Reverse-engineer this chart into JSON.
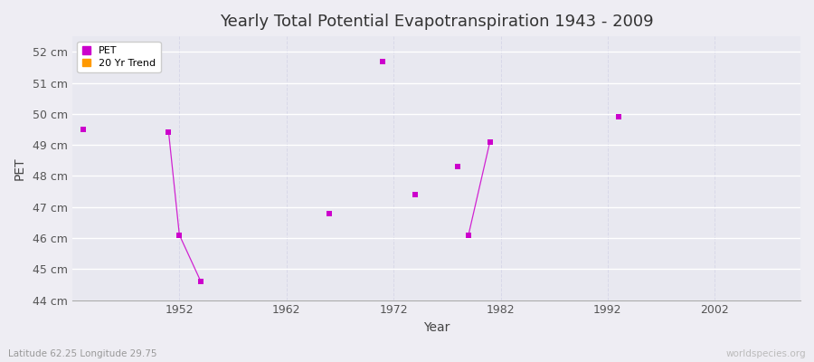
{
  "title": "Yearly Total Potential Evapotranspiration 1943 - 2009",
  "xlabel": "Year",
  "ylabel": "PET",
  "xlim": [
    1942,
    2010
  ],
  "ylim": [
    44,
    52.5
  ],
  "yticks": [
    44,
    45,
    46,
    47,
    48,
    49,
    50,
    51,
    52
  ],
  "ytick_labels": [
    "44 cm",
    "45 cm",
    "46 cm",
    "47 cm",
    "48 cm",
    "49 cm",
    "50 cm",
    "51 cm",
    "52 cm"
  ],
  "xticks": [
    1952,
    1962,
    1972,
    1982,
    1992,
    2002
  ],
  "background_color": "#eeedf3",
  "plot_bg_color": "#e8e8f0",
  "grid_color_h": "#ffffff",
  "grid_color_v": "#d8d8e8",
  "pet_color": "#cc00cc",
  "trend_color": "#ff9900",
  "scatter_points": [
    {
      "year": 1943,
      "value": 49.5
    },
    {
      "year": 1966,
      "value": 46.8
    },
    {
      "year": 1971,
      "value": 51.7
    },
    {
      "year": 1974,
      "value": 47.4
    },
    {
      "year": 1978,
      "value": 48.3
    },
    {
      "year": 1993,
      "value": 49.9
    }
  ],
  "line_segments": [
    {
      "x": [
        1951,
        1952,
        1954
      ],
      "y": [
        49.4,
        46.1,
        44.6
      ]
    },
    {
      "x": [
        1979,
        1981
      ],
      "y": [
        46.1,
        49.1
      ]
    }
  ],
  "subtitle": "Latitude 62.25 Longitude 29.75",
  "watermark": "worldspecies.org",
  "title_fontsize": 13,
  "axis_label_fontsize": 10,
  "tick_fontsize": 9
}
